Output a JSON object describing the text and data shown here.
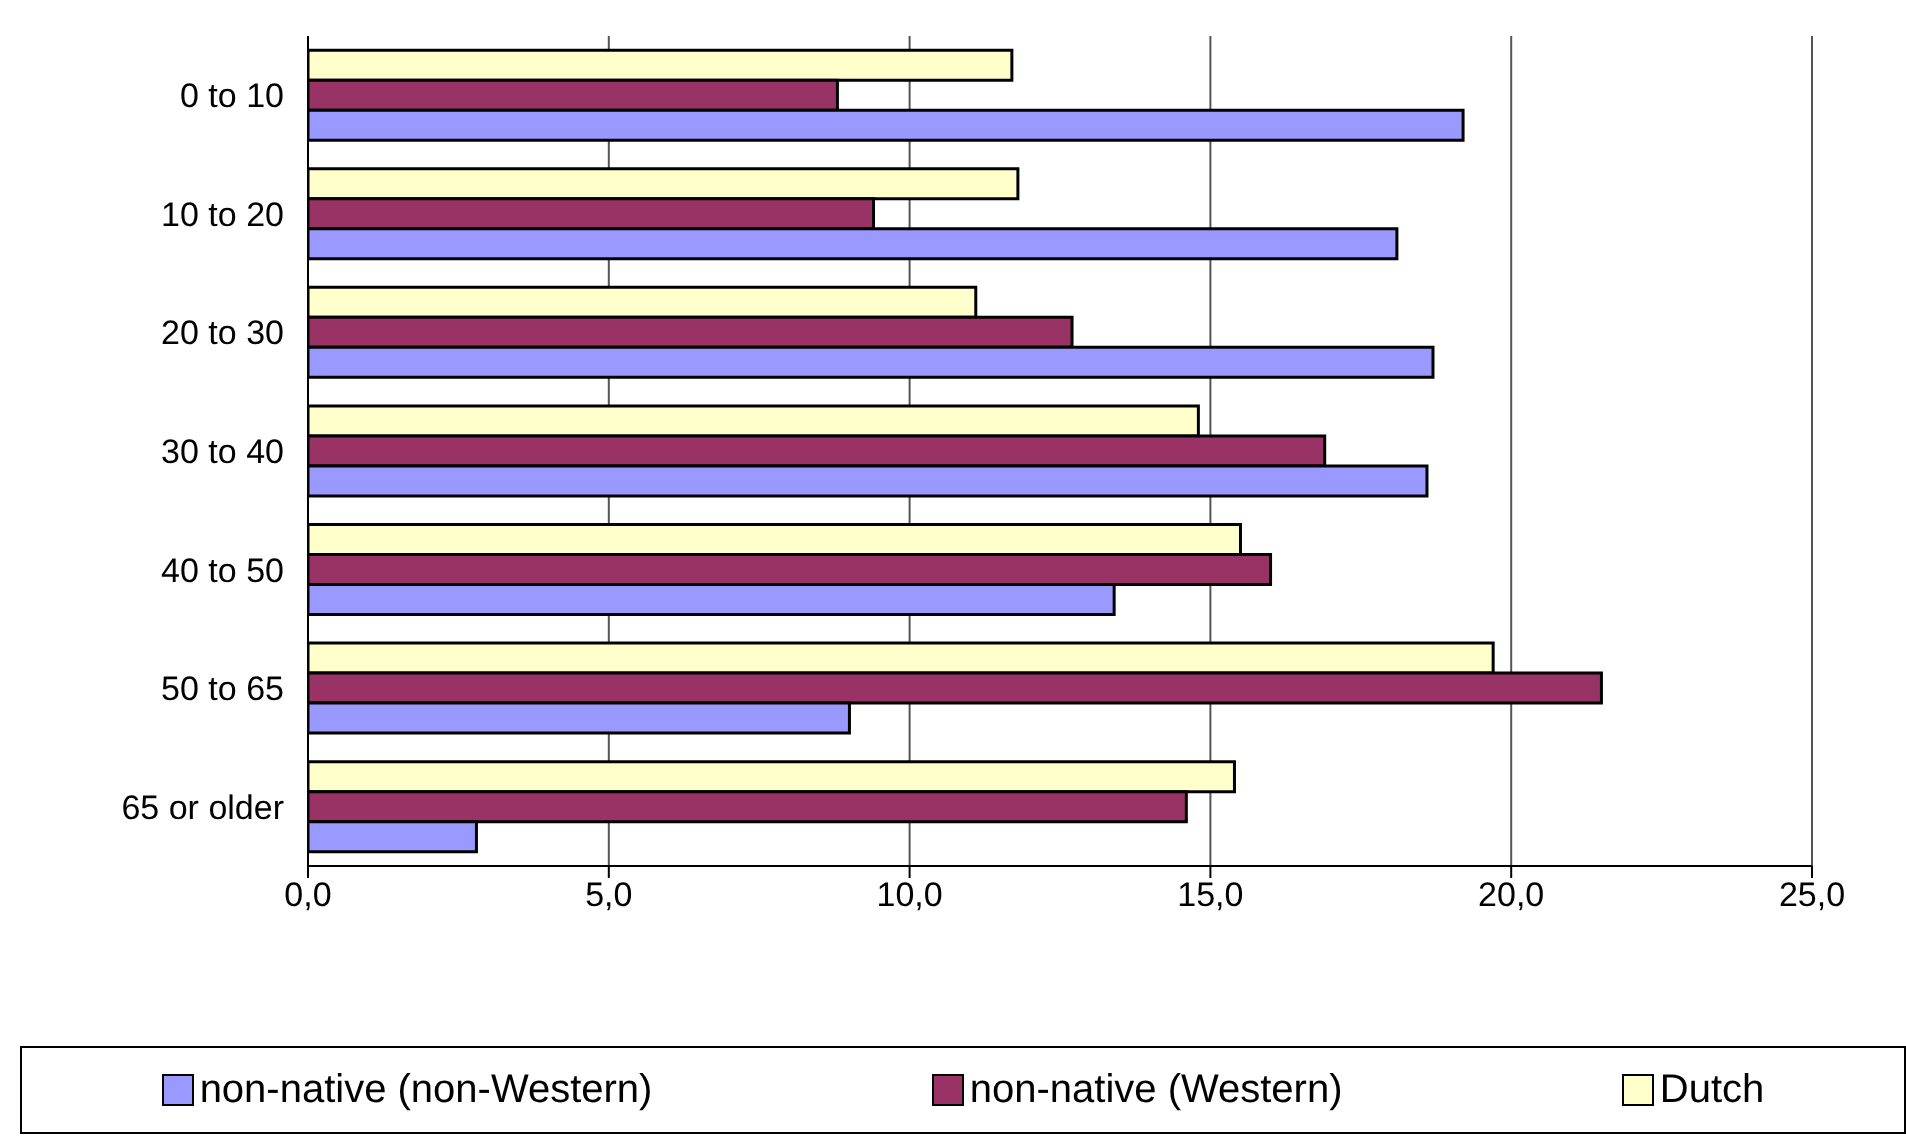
{
  "chart_data": {
    "type": "bar",
    "orientation": "horizontal",
    "categories": [
      "0 to 10",
      "10 to 20",
      "20 to 30",
      "30 to 40",
      "40 to 50",
      "50 to 65",
      "65 or older"
    ],
    "series": [
      {
        "name": "non-native (non-Western)",
        "color": "#9999ff",
        "values": [
          19.2,
          18.1,
          18.7,
          18.6,
          13.4,
          9.0,
          2.8
        ]
      },
      {
        "name": "non-native (Western)",
        "color": "#993366",
        "values": [
          8.8,
          9.4,
          12.7,
          16.9,
          16.0,
          21.5,
          14.6
        ]
      },
      {
        "name": "Dutch",
        "color": "#ffffcc",
        "values": [
          11.7,
          11.8,
          11.1,
          14.8,
          15.5,
          19.7,
          15.4
        ]
      }
    ],
    "xlim": [
      0,
      25
    ],
    "xticks": [
      {
        "value": 0,
        "label": "0,0"
      },
      {
        "value": 5,
        "label": "5,0"
      },
      {
        "value": 10,
        "label": "10,0"
      },
      {
        "value": 15,
        "label": "15,0"
      },
      {
        "value": 20,
        "label": "20,0"
      },
      {
        "value": 25,
        "label": "25,0"
      }
    ],
    "grid": "x",
    "legend": "bottom"
  }
}
